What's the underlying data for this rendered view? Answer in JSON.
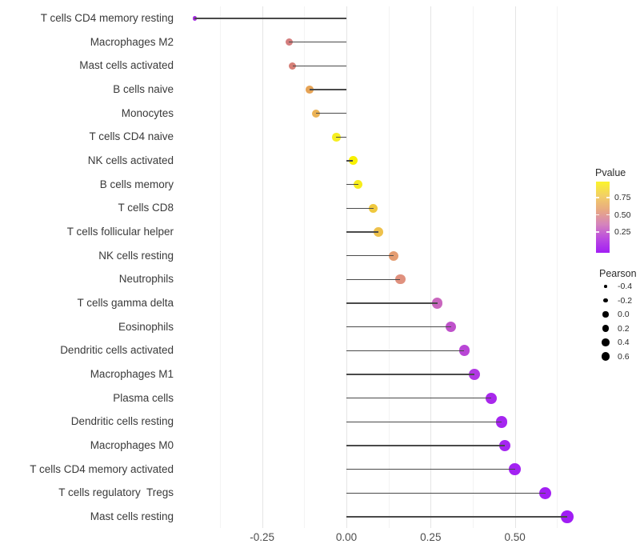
{
  "chart_data": {
    "type": "lollipop",
    "title": "",
    "xlabel": "",
    "ylabel": "",
    "grid": "vertical-only",
    "background": "#ffffff",
    "stem_color": "#4a4a4a",
    "xlim": [
      -0.458,
      0.68
    ],
    "x_ticks": [
      {
        "value": -0.25,
        "label": "-0.25"
      },
      {
        "value": 0.0,
        "label": "0.00"
      },
      {
        "value": 0.25,
        "label": "0.25"
      },
      {
        "value": 0.5,
        "label": "0.50"
      }
    ],
    "rows": [
      {
        "label": "T cells CD4 memory resting",
        "pearson": -0.45,
        "color": "#a52be0"
      },
      {
        "label": "Macrophages M2",
        "pearson": -0.17,
        "color": "#d47e7e"
      },
      {
        "label": "Mast cells activated",
        "pearson": -0.16,
        "color": "#d67f77"
      },
      {
        "label": "B cells naive",
        "pearson": -0.11,
        "color": "#e6a355"
      },
      {
        "label": "Monocytes",
        "pearson": -0.09,
        "color": "#ebb254"
      },
      {
        "label": "T cells CD4 naive",
        "pearson": -0.03,
        "color": "#f6ee20"
      },
      {
        "label": "NK cells activated",
        "pearson": 0.02,
        "color": "#f8f000"
      },
      {
        "label": "B cells memory",
        "pearson": 0.035,
        "color": "#f7ed1b"
      },
      {
        "label": "T cells CD8",
        "pearson": 0.08,
        "color": "#efc83e"
      },
      {
        "label": "T cells follicular helper",
        "pearson": 0.095,
        "color": "#eec14b"
      },
      {
        "label": "NK cells resting",
        "pearson": 0.14,
        "color": "#e49d72"
      },
      {
        "label": "Neutrophils",
        "pearson": 0.16,
        "color": "#e0917e"
      },
      {
        "label": "T cells gamma delta",
        "pearson": 0.27,
        "color": "#c966be"
      },
      {
        "label": "Eosinophils",
        "pearson": 0.31,
        "color": "#bf52cb"
      },
      {
        "label": "Dendritic cells activated",
        "pearson": 0.35,
        "color": "#b946d6"
      },
      {
        "label": "Macrophages M1",
        "pearson": 0.38,
        "color": "#b138e3"
      },
      {
        "label": "Plasma cells",
        "pearson": 0.43,
        "color": "#a928ec"
      },
      {
        "label": "Dendritic cells resting",
        "pearson": 0.46,
        "color": "#a526f0"
      },
      {
        "label": "Macrophages M0",
        "pearson": 0.47,
        "color": "#a526f0"
      },
      {
        "label": "T cells CD4 memory activated",
        "pearson": 0.5,
        "color": "#a322f2"
      },
      {
        "label": "T cells regulatory  Tregs",
        "pearson": 0.59,
        "color": "#a21ff3"
      },
      {
        "label": "Mast cells resting",
        "pearson": 0.655,
        "color": "#a01df4"
      }
    ],
    "legend_pvalue": {
      "title": "Pvalue",
      "tick_labels": [
        "0.75",
        "0.50",
        "0.25"
      ],
      "gradient_top_to_bottom": [
        "#fbf42b",
        "#f2cf66",
        "#e8a982",
        "#d584bc",
        "#bb4be0",
        "#a21ef4"
      ]
    },
    "legend_pearson": {
      "title": "Pearson",
      "break_labels": [
        "-0.4",
        "-0.2",
        "0.0",
        "0.2",
        "0.4",
        "0.6"
      ]
    }
  }
}
